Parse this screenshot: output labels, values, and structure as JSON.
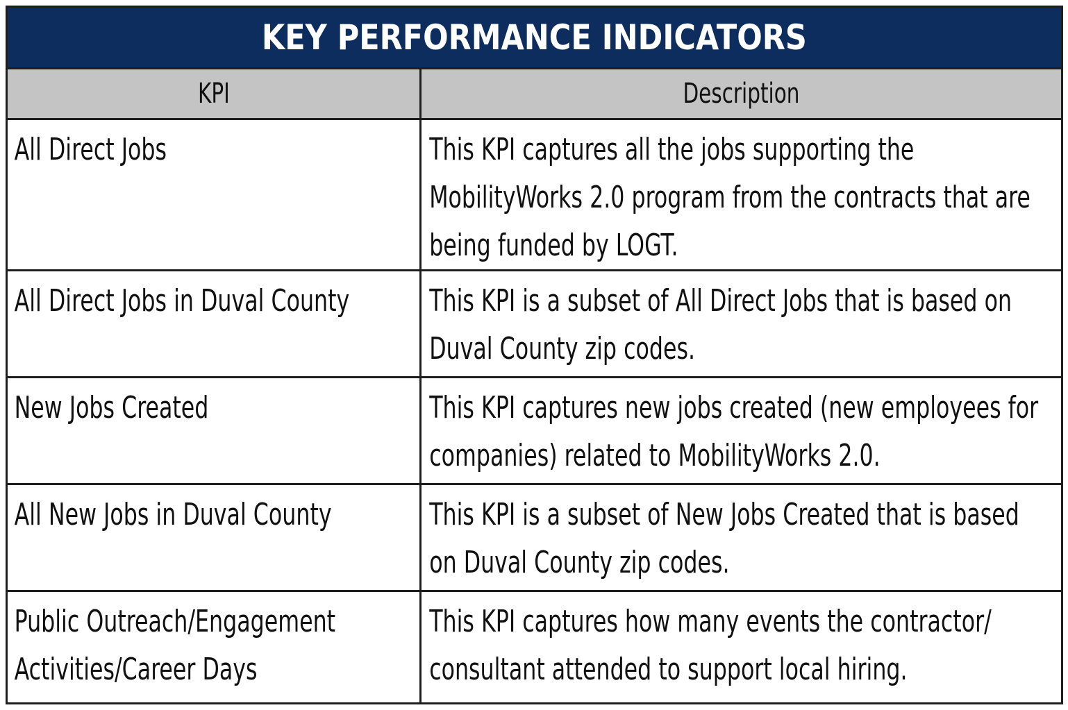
{
  "title": "KEY PERFORMANCE INDICATORS",
  "columns": [
    "KPI",
    "Description"
  ],
  "rows": [
    {
      "kpi": "All Direct Jobs",
      "description": "This KPI captures all the jobs supporting the MobilityWorks 2.0 program from the contracts that are being funded by LOGT."
    },
    {
      "kpi": "All Direct Jobs in Duval County",
      "description": "This KPI is a subset of All Direct Jobs that is based on Duval County zip codes."
    },
    {
      "kpi": "New Jobs Created",
      "description": "This KPI captures new jobs created (new employees for companies) related to MobilityWorks 2.0."
    },
    {
      "kpi": "All New Jobs in Duval County",
      "description": "This KPI is a subset of New Jobs Created that is based on Duval County zip codes."
    },
    {
      "kpi": "Public Outreach/Engagement Activities/Career Days",
      "description": "This KPI captures how many events the contractor/ consultant attended to support local hiring."
    }
  ],
  "colors": {
    "title_bg": "#0d2d5e",
    "header_bg": "#c4c4c4",
    "border": "#1e1e1e"
  }
}
